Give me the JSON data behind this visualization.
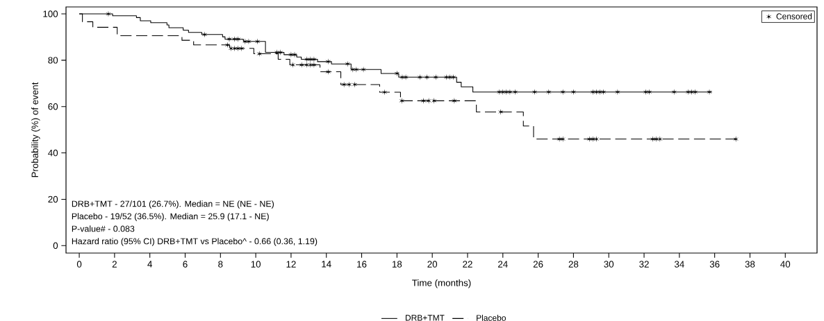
{
  "chart_data": {
    "type": "step",
    "xlabel": "Time (months)",
    "ylabel": "Probability (%) of event",
    "xlim": [
      -0.75,
      41.8
    ],
    "ylim": [
      -3.2,
      103
    ],
    "xticks": [
      0,
      2,
      4,
      6,
      8,
      10,
      12,
      14,
      16,
      18,
      20,
      22,
      24,
      26,
      28,
      30,
      32,
      34,
      36,
      38,
      40
    ],
    "yticks": [
      0,
      20,
      40,
      60,
      80,
      100
    ],
    "legend": "bottom",
    "annotations": [
      "DRB+TMT - 27/101 (26.7%). Median = NE (NE - NE)",
      "Placebo - 19/52 (36.5%). Median = 25.9 (17.1 - NE)",
      "P-value# - 0.083",
      "Hazard ratio (95% CI) DRB+TMT vs Placebo^ - 0.66 (0.36, 1.19)"
    ],
    "series": [
      {
        "name": "DRB+TMT",
        "color": "#000000",
        "line_style": "solid",
        "x": [
          0,
          1.89,
          3.24,
          3.46,
          4.05,
          4.97,
          5.08,
          5.89,
          6.19,
          6.94,
          8.12,
          8.26,
          9.3,
          10.55,
          11.6,
          12.32,
          12.58,
          13.5,
          14.29,
          15.4,
          17.1,
          18.1,
          21.38,
          21.64,
          22.3,
          35.85
        ],
        "values": [
          100,
          99.2,
          98.4,
          97.0,
          96.2,
          95.2,
          94.0,
          93.0,
          92.0,
          91.1,
          90.1,
          89.1,
          88.1,
          83.4,
          82.4,
          81.4,
          80.4,
          79.4,
          78.4,
          76.0,
          74.3,
          72.7,
          70.5,
          68.5,
          66.3,
          66.3
        ]
      },
      {
        "name": "Placebo",
        "color": "#000000",
        "line_style": "dashed",
        "x": [
          0,
          0.18,
          0.77,
          2.15,
          5.82,
          6.48,
          8.52,
          9.89,
          11.27,
          11.93,
          13.64,
          14.82,
          17.02,
          18.2,
          22.5,
          25.16,
          25.74,
          37.2
        ],
        "values": [
          100,
          96.6,
          94.2,
          90.6,
          88.6,
          86.6,
          85.1,
          82.8,
          80.4,
          78.0,
          75.0,
          69.5,
          66.2,
          62.5,
          57.7,
          51.6,
          46.0,
          46.0
        ]
      },
      {
        "name": "Censored",
        "type": "scatter",
        "marker": "cross",
        "color": "#000000",
        "x": [
          1.65,
          7.1,
          8.5,
          8.8,
          9.0,
          9.4,
          9.6,
          10.1,
          11.2,
          11.4,
          12.0,
          12.2,
          12.9,
          13.1,
          13.3,
          14.1,
          15.2,
          15.5,
          15.7,
          16.1,
          18.0,
          18.3,
          18.5,
          19.3,
          19.7,
          20.2,
          20.8,
          21.0,
          21.2,
          23.8,
          24.0,
          24.2,
          24.4,
          24.7,
          25.8,
          26.6,
          27.4,
          28.0,
          29.1,
          29.3,
          29.5,
          29.7,
          30.5,
          32.1,
          32.3,
          33.7,
          34.5,
          34.7,
          34.9,
          35.7
        ],
        "values": [
          100,
          91.1,
          89.1,
          89.1,
          89.1,
          88.1,
          88.1,
          88.1,
          83.4,
          83.4,
          82.4,
          82.4,
          80.4,
          80.4,
          80.4,
          79.4,
          78.4,
          76.0,
          76.0,
          76.0,
          74.3,
          72.7,
          72.7,
          72.7,
          72.7,
          72.7,
          72.7,
          72.7,
          72.7,
          66.3,
          66.3,
          66.3,
          66.3,
          66.3,
          66.3,
          66.3,
          66.3,
          66.3,
          66.3,
          66.3,
          66.3,
          66.3,
          66.3,
          66.3,
          66.3,
          66.3,
          66.3,
          66.3,
          66.3,
          66.3
        ]
      },
      {
        "type": "scatter",
        "marker": "cross",
        "color": "#000000",
        "x": [
          8.4,
          8.6,
          8.8,
          9.0,
          9.2,
          10.2,
          12.1,
          12.6,
          12.9,
          13.1,
          13.3,
          14.1,
          15.0,
          15.3,
          15.6,
          17.3,
          18.27,
          19.5,
          19.8,
          20.1,
          21.25,
          23.88,
          27.2,
          27.4,
          28.9,
          29.1,
          29.3,
          32.5,
          32.7,
          32.9,
          37.2
        ],
        "values": [
          86.6,
          85.1,
          85.1,
          85.1,
          85.1,
          82.8,
          78.0,
          78.0,
          78.0,
          78.0,
          78.0,
          75.0,
          69.5,
          69.5,
          69.5,
          66.2,
          62.5,
          62.5,
          62.5,
          62.5,
          62.5,
          57.7,
          46.0,
          46.0,
          46.0,
          46.0,
          46.0,
          46.0,
          46.0,
          46.0,
          46.0
        ]
      }
    ]
  }
}
